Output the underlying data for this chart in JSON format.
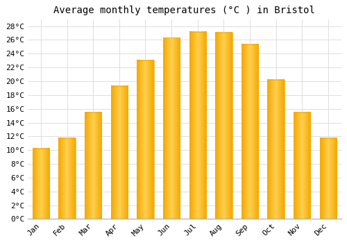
{
  "title": "Average monthly temperatures (°C ) in Bristol",
  "months": [
    "Jan",
    "Feb",
    "Mar",
    "Apr",
    "May",
    "Jun",
    "Jul",
    "Aug",
    "Sep",
    "Oct",
    "Nov",
    "Dec"
  ],
  "values": [
    10.2,
    11.7,
    15.5,
    19.3,
    23.0,
    26.3,
    27.2,
    27.1,
    25.3,
    20.2,
    15.5,
    11.7
  ],
  "bar_color_center": "#FFD050",
  "bar_color_edge": "#F5A800",
  "background_color": "#FFFFFF",
  "plot_bg_color": "#FFFFFF",
  "grid_color": "#DDDDDD",
  "ylim": [
    0,
    29
  ],
  "ytick_step": 2,
  "title_fontsize": 10,
  "tick_fontsize": 8,
  "font_family": "monospace",
  "bar_width": 0.65
}
